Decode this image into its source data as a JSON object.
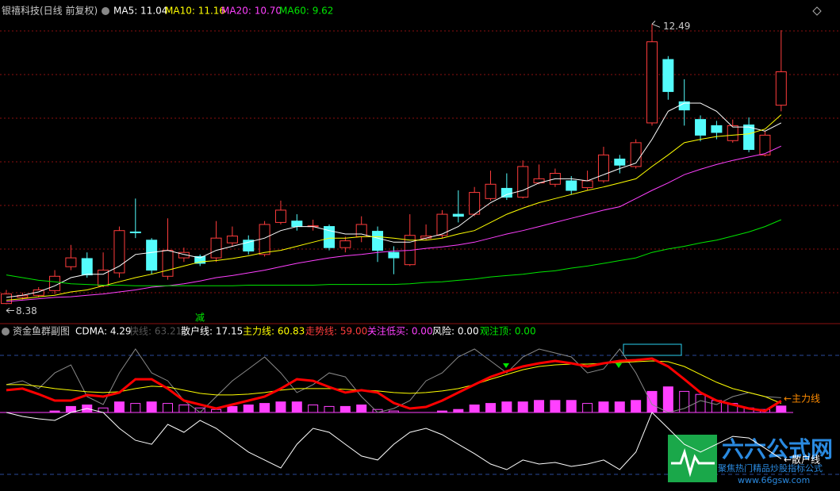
{
  "chart_data": [
    {
      "type": "candlestick",
      "title": "银禧科技(日线 前复权)",
      "legend": [
        {
          "text": "MA5: 11.04",
          "color": "#ffffff"
        },
        {
          "text": "MA10: 11.16",
          "color": "#ffff00"
        },
        {
          "text": "MA20: 10.70",
          "color": "#ff40ff"
        },
        {
          "text": "MA60: 9.62",
          "color": "#00e600"
        }
      ],
      "open": [
        8.39,
        8.48,
        8.51,
        8.58,
        8.93,
        9.05,
        8.65,
        8.84,
        9.44,
        9.32,
        8.79,
        9.06,
        9.08,
        9.06,
        9.28,
        9.32,
        9.11,
        9.58,
        9.6,
        9.52,
        9.52,
        9.21,
        9.37,
        9.45,
        9.14,
        8.96,
        9.35,
        9.39,
        9.7,
        9.7,
        9.93,
        10.08,
        9.95,
        10.16,
        10.14,
        10.19,
        10.09,
        10.19,
        10.51,
        10.4,
        11.04,
        11.97,
        11.35,
        11.09,
        11.0,
        10.78,
        11.01,
        10.57,
        11.3
      ],
      "high": [
        8.59,
        8.55,
        8.63,
        8.88,
        9.25,
        9.14,
        9.14,
        9.52,
        9.93,
        9.35,
        9.64,
        9.21,
        9.11,
        9.6,
        9.52,
        9.39,
        9.6,
        9.9,
        9.7,
        9.62,
        9.55,
        9.37,
        9.67,
        9.52,
        9.23,
        9.7,
        9.55,
        9.76,
        10.05,
        10.1,
        10.34,
        10.3,
        10.49,
        10.43,
        10.37,
        10.26,
        10.34,
        10.69,
        10.57,
        10.8,
        12.49,
        12.02,
        11.68,
        11.15,
        11.07,
        11.09,
        11.12,
        10.92,
        12.4
      ],
      "low": [
        8.38,
        8.45,
        8.48,
        8.53,
        8.88,
        8.77,
        8.63,
        8.77,
        9.35,
        8.82,
        8.74,
        9.0,
        8.94,
        9.0,
        9.23,
        9.11,
        9.08,
        9.55,
        9.46,
        9.46,
        9.17,
        9.14,
        9.29,
        9.0,
        8.82,
        8.94,
        9.32,
        9.35,
        9.58,
        9.67,
        9.9,
        9.91,
        9.93,
        10.14,
        10.1,
        9.99,
        10.05,
        10.16,
        10.3,
        10.37,
        11.0,
        11.38,
        11.0,
        10.77,
        10.8,
        10.75,
        10.61,
        10.55,
        11.21
      ],
      "close": [
        8.53,
        8.51,
        8.59,
        8.79,
        9.06,
        8.81,
        8.88,
        9.46,
        9.43,
        8.88,
        9.17,
        9.14,
        8.98,
        9.35,
        9.38,
        9.16,
        9.55,
        9.76,
        9.52,
        9.53,
        9.21,
        9.31,
        9.55,
        9.17,
        9.06,
        9.39,
        9.38,
        9.7,
        9.67,
        10.02,
        10.14,
        9.95,
        10.4,
        10.22,
        10.3,
        10.05,
        10.19,
        10.57,
        10.42,
        10.75,
        12.23,
        11.5,
        11.23,
        10.86,
        10.9,
        11.0,
        10.65,
        10.86,
        11.79
      ],
      "up_color": "#ff3c3c",
      "down_color": "#54fcfc",
      "series": [
        {
          "color": "#ffffff",
          "values": [
            8.48,
            8.51,
            8.56,
            8.65,
            8.77,
            8.82,
            8.82,
            8.94,
            9.11,
            9.14,
            9.17,
            9.11,
            9.06,
            9.17,
            9.23,
            9.29,
            9.35,
            9.46,
            9.52,
            9.52,
            9.46,
            9.41,
            9.41,
            9.35,
            9.29,
            9.29,
            9.35,
            9.41,
            9.52,
            9.7,
            9.87,
            9.99,
            10.05,
            10.16,
            10.22,
            10.22,
            10.19,
            10.28,
            10.37,
            10.45,
            10.8,
            11.21,
            11.33,
            11.33,
            11.21,
            10.98,
            10.98,
            10.92,
            11.04
          ]
        },
        {
          "color": "#ffff00",
          "values": [
            8.44,
            8.46,
            8.49,
            8.51,
            8.56,
            8.59,
            8.65,
            8.71,
            8.77,
            8.82,
            8.88,
            8.94,
            9.0,
            9.02,
            9.05,
            9.09,
            9.14,
            9.17,
            9.23,
            9.29,
            9.35,
            9.35,
            9.37,
            9.37,
            9.35,
            9.32,
            9.32,
            9.35,
            9.41,
            9.46,
            9.58,
            9.7,
            9.79,
            9.87,
            9.93,
            9.99,
            10.05,
            10.1,
            10.16,
            10.22,
            10.4,
            10.57,
            10.75,
            10.8,
            10.84,
            10.86,
            10.88,
            10.95,
            11.16
          ]
        },
        {
          "color": "#ff40ff",
          "values": [
            8.42,
            8.44,
            8.46,
            8.48,
            8.49,
            8.51,
            8.53,
            8.56,
            8.59,
            8.63,
            8.65,
            8.68,
            8.72,
            8.77,
            8.8,
            8.84,
            8.88,
            8.93,
            8.98,
            9.02,
            9.06,
            9.09,
            9.11,
            9.14,
            9.16,
            9.17,
            9.2,
            9.22,
            9.25,
            9.29,
            9.35,
            9.41,
            9.46,
            9.52,
            9.58,
            9.64,
            9.7,
            9.76,
            9.81,
            9.93,
            10.05,
            10.16,
            10.28,
            10.36,
            10.43,
            10.49,
            10.54,
            10.59,
            10.7
          ]
        },
        {
          "color": "#00e600",
          "values": [
            8.81,
            8.77,
            8.73,
            8.71,
            8.68,
            8.67,
            8.66,
            8.66,
            8.65,
            8.65,
            8.65,
            8.65,
            8.65,
            8.65,
            8.65,
            8.66,
            8.66,
            8.66,
            8.66,
            8.66,
            8.67,
            8.67,
            8.67,
            8.67,
            8.67,
            8.68,
            8.7,
            8.71,
            8.73,
            8.75,
            8.78,
            8.8,
            8.82,
            8.85,
            8.87,
            8.91,
            8.94,
            8.98,
            9.02,
            9.06,
            9.14,
            9.19,
            9.23,
            9.28,
            9.32,
            9.38,
            9.44,
            9.52,
            9.62
          ]
        }
      ],
      "ylim": [
        8.13,
        12.75
      ],
      "annotations": [
        "12.49",
        "8.38",
        "减"
      ]
    },
    {
      "type": "indicator",
      "title": "资金鱼群副图",
      "legend": [
        {
          "text": "CDMA: 4.29",
          "color": "#ffffff"
        },
        {
          "text": "快线: 63.21",
          "color": "#555555"
        },
        {
          "text": "散户线: 17.15",
          "color": "#ffffff"
        },
        {
          "text": "主力线: 60.83",
          "color": "#ffff00"
        },
        {
          "text": "走势线: 59.00",
          "color": "#ff3c3c"
        },
        {
          "text": "关注低买: 0.00",
          "color": "#ff40ff"
        },
        {
          "text": "风险: 0.00",
          "color": "#ffffff"
        },
        {
          "text": "观注顶: 0.00",
          "color": "#00e600"
        }
      ],
      "series": [
        {
          "color": "#ff40ff",
          "axis": "y2",
          "values": [
            0,
            0,
            0,
            1,
            4,
            5,
            3,
            7,
            6,
            7,
            6,
            5,
            3,
            2,
            4,
            5,
            6,
            7,
            7,
            5,
            4,
            4,
            5,
            2,
            1,
            0,
            0,
            1,
            2,
            5,
            6,
            7,
            7,
            8,
            8,
            8,
            6,
            7,
            7,
            8,
            14,
            17,
            14,
            12,
            8,
            6,
            3,
            2,
            4.29
          ]
        },
        {
          "color": "#8a8a8a",
          "width": 1,
          "values": [
            73.1,
            76.0,
            70.1,
            82.0,
            88.0,
            64.1,
            58.1,
            82.0,
            100,
            82.0,
            76.0,
            61.1,
            52.1,
            64.1,
            76.0,
            85.0,
            94.0,
            82.0,
            67.1,
            73.1,
            82.0,
            79.0,
            64.1,
            52.1,
            55.1,
            61.1,
            76.0,
            82.0,
            94.0,
            100,
            91.0,
            82.0,
            94.0,
            100,
            97.0,
            94.0,
            82.0,
            85.0,
            100,
            82.0,
            58.1,
            52.1,
            55.1,
            61.1,
            58.1,
            64.1,
            67.1,
            64.1,
            63.21
          ]
        },
        {
          "color": "#ffffff",
          "width": 1,
          "values": [
            52.1,
            49.1,
            47.3,
            46.1,
            52.1,
            55.1,
            52.1,
            40.1,
            31.1,
            28.1,
            43.1,
            37.1,
            46.1,
            40.1,
            31.1,
            22.2,
            16.2,
            10.2,
            28.1,
            40.1,
            37.1,
            28.1,
            19.2,
            16.2,
            28.1,
            37.1,
            40.1,
            35.3,
            28.1,
            21.0,
            13.2,
            9.0,
            16.2,
            13.2,
            14.4,
            11.4,
            13.2,
            16.2,
            9.0,
            22.2,
            52.1,
            40.1,
            28.1,
            22.2,
            28.1,
            34.1,
            32.9,
            25.1,
            17.15
          ]
        },
        {
          "color": "#ffff00",
          "width": 1,
          "values": [
            73.1,
            73.1,
            71.9,
            70.1,
            68.9,
            67.7,
            67.1,
            67.7,
            70.1,
            71.9,
            71.3,
            68.9,
            66.5,
            65.3,
            65.3,
            65.9,
            67.1,
            68.9,
            70.1,
            70.1,
            70.1,
            69.5,
            68.9,
            68.3,
            67.1,
            66.5,
            67.1,
            68.3,
            70.1,
            73.1,
            77.2,
            80.8,
            84.4,
            86.8,
            88.0,
            88.6,
            88.6,
            89.2,
            89.8,
            90.4,
            91.0,
            90.4,
            86.8,
            80.8,
            74.9,
            70.1,
            67.1,
            64.1,
            59.0
          ]
        },
        {
          "color": "#ff0000",
          "width": 3,
          "values": [
            68.9,
            70.1,
            65.9,
            61.1,
            61.1,
            65.3,
            64.1,
            67.1,
            77.2,
            77.2,
            70.1,
            61.1,
            58.1,
            55.1,
            58.1,
            61.1,
            64.1,
            70.1,
            77.2,
            76.0,
            71.3,
            67.1,
            68.9,
            67.1,
            59.3,
            55.1,
            56.3,
            61.1,
            67.1,
            73.1,
            79.0,
            83.2,
            86.8,
            89.2,
            91.0,
            89.2,
            86.8,
            89.2,
            91.0,
            91.6,
            92.8,
            86.8,
            77.2,
            67.1,
            61.1,
            58.1,
            55.1,
            53.3,
            60.83
          ]
        }
      ],
      "ylim": [
        0,
        100
      ],
      "y2lim": [
        0,
        40
      ],
      "line_labels": [
        {
          "text": "←主力线",
          "color": "#ff8c00"
        },
        {
          "text": "←散户线",
          "color": "#ffffff"
        }
      ]
    }
  ],
  "watermark": {
    "title": "六六公式网",
    "subtitle": "聚焦热门精品炒股指标公式",
    "url": "www.66gsw.com"
  }
}
